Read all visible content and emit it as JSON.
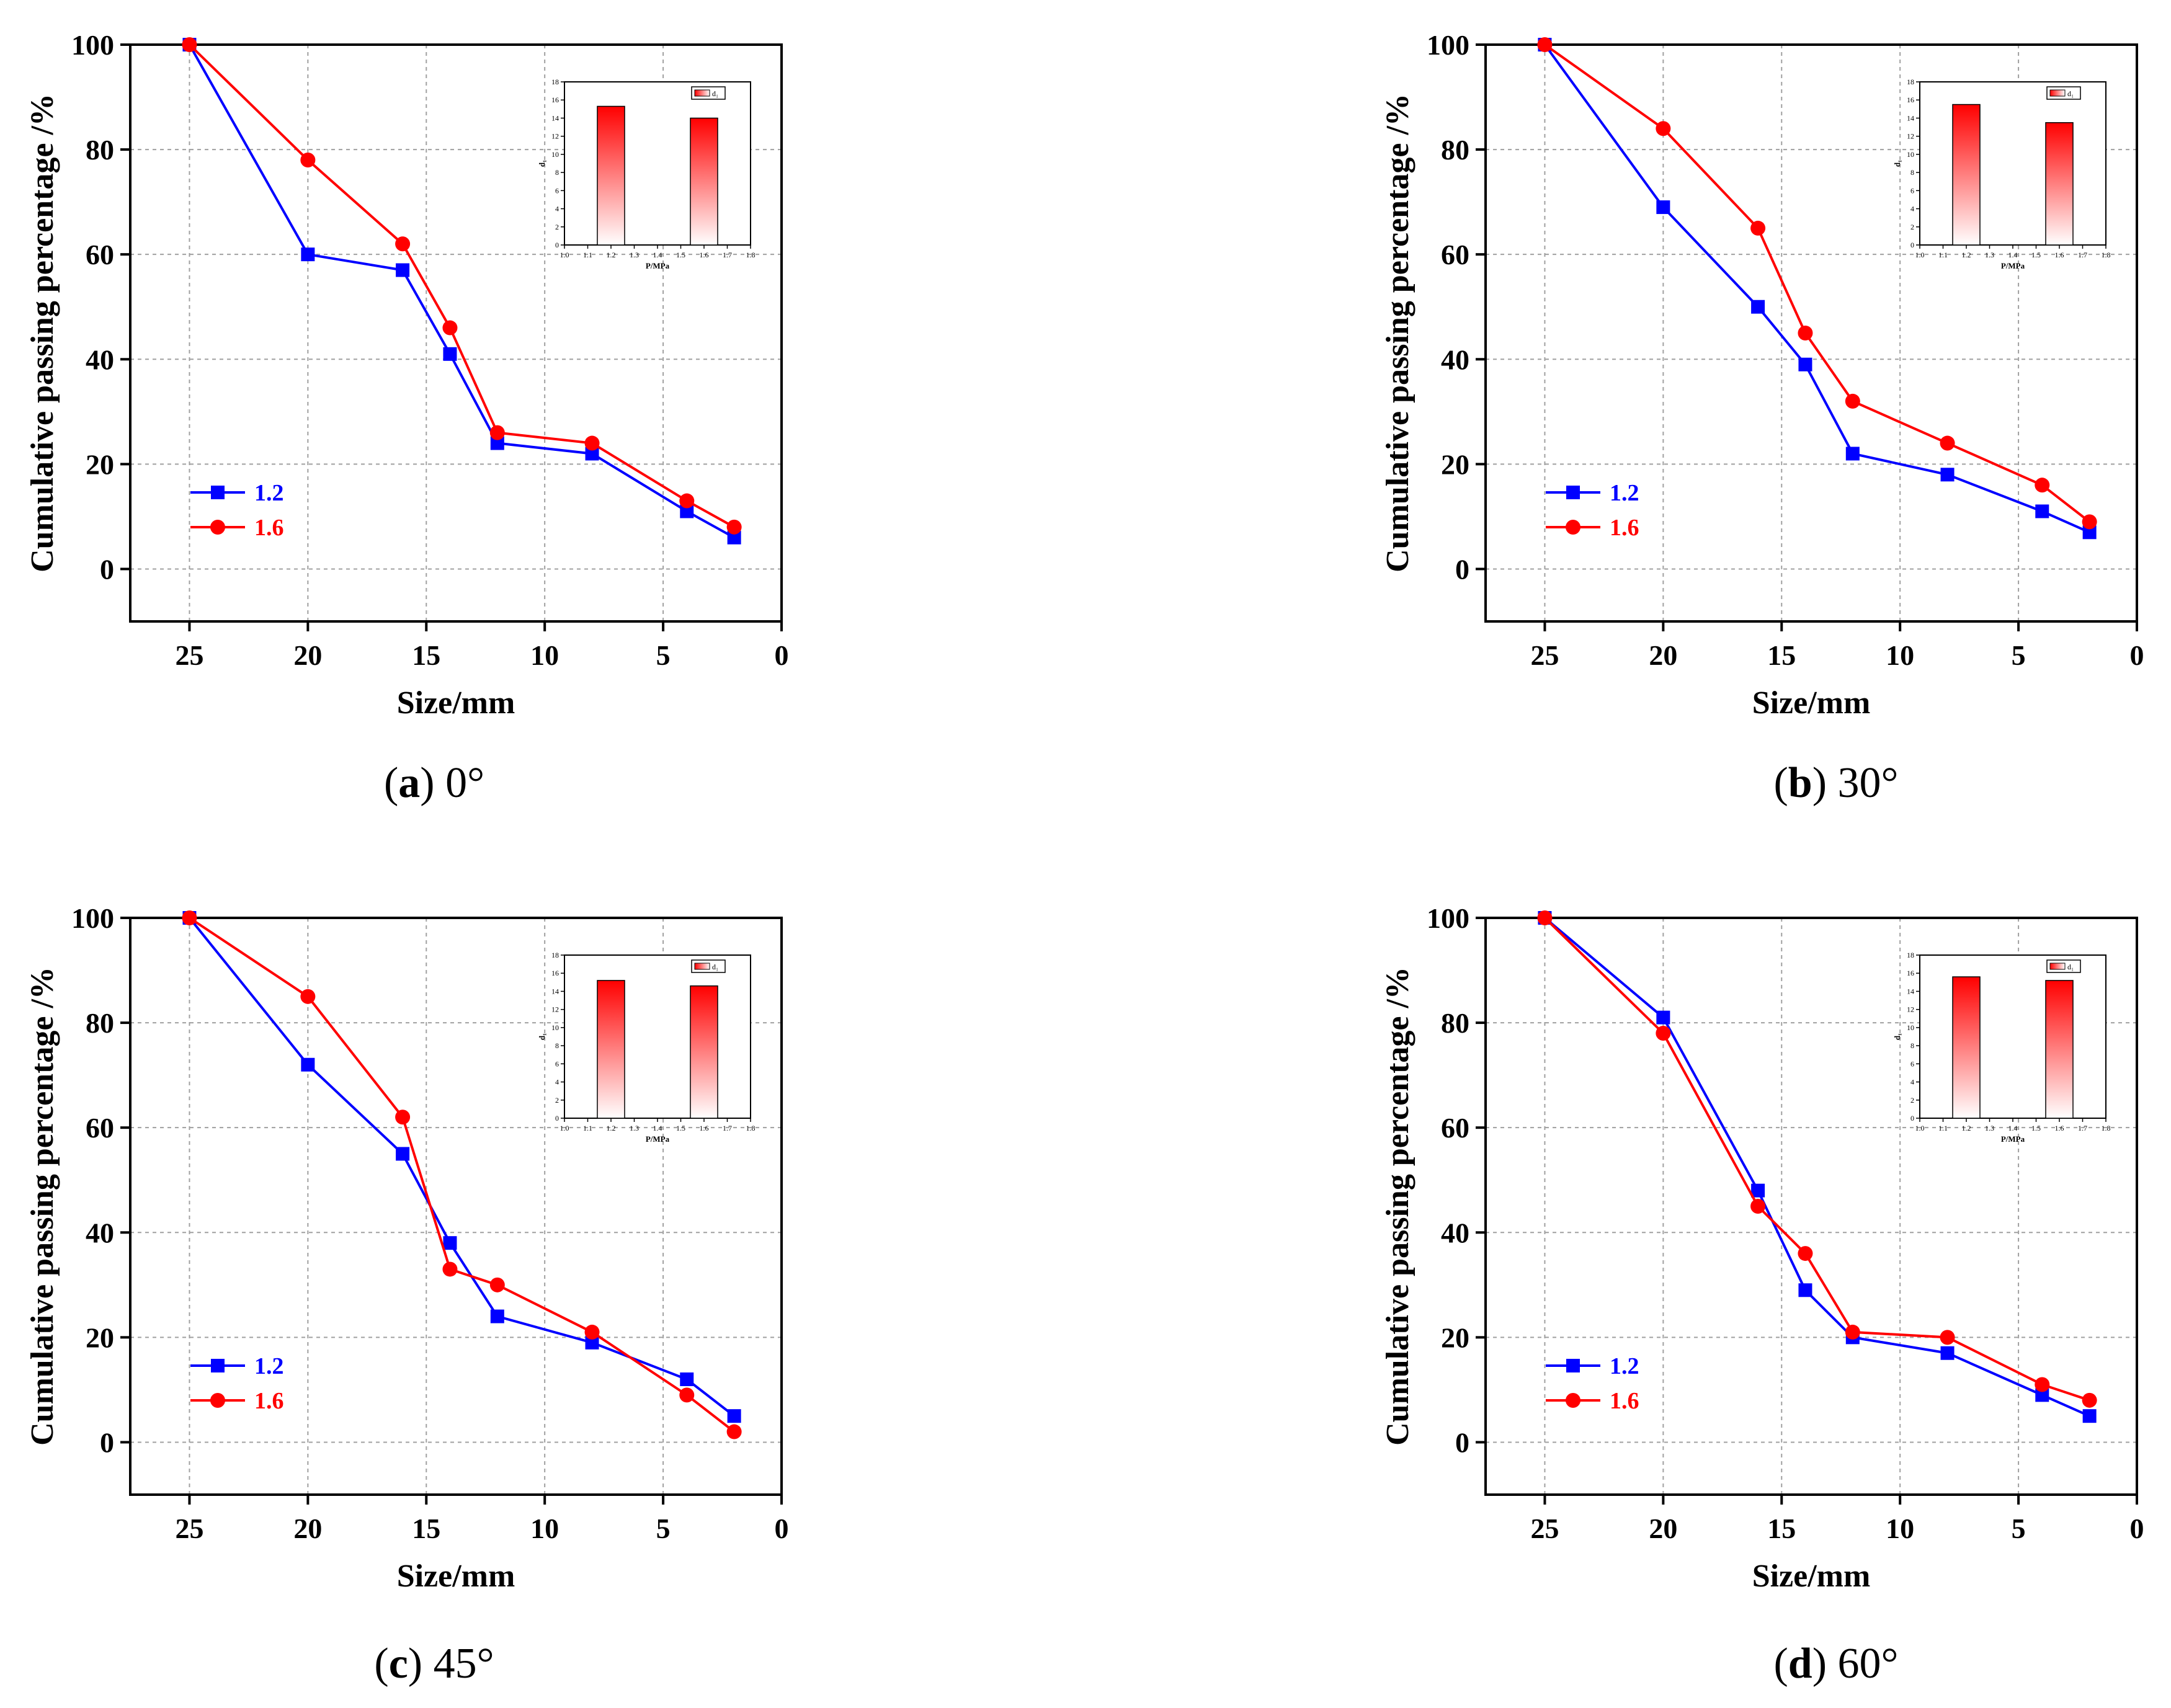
{
  "colors": {
    "series_1_2": "#0000ff",
    "series_1_6": "#ff0000",
    "grid": "#a0a0a0",
    "bar": "#ff0000"
  },
  "chart_data": [
    {
      "type": "line",
      "panel": "a",
      "caption": {
        "letter": "a",
        "angle": "0°"
      },
      "xlabel": "Size/mm",
      "ylabel": "Cumulative passing percentage /%",
      "xlim": [
        27.5,
        0
      ],
      "ylim": [
        -10,
        100
      ],
      "xticks": [
        25,
        20,
        15,
        10,
        5,
        0
      ],
      "yticks": [
        0,
        20,
        40,
        60,
        80,
        100
      ],
      "x": [
        25,
        20,
        16,
        14,
        12,
        8,
        4,
        2
      ],
      "series": [
        {
          "name": "1.2",
          "color": "#0000ff",
          "marker": "square",
          "values": [
            100,
            60,
            57,
            41,
            24,
            22,
            11,
            6
          ]
        },
        {
          "name": "1.6",
          "color": "#ff0000",
          "marker": "circle",
          "values": [
            100,
            78,
            62,
            46,
            26,
            24,
            13,
            8
          ]
        }
      ],
      "inset": {
        "type": "bar",
        "xlabel": "P/MPa",
        "ylabel": "d₁",
        "legend": "d₁",
        "xlim": [
          1.0,
          1.8
        ],
        "ylim": [
          0,
          18
        ],
        "xticks": [
          "1.0",
          "1.1",
          "1.2",
          "1.3",
          "1.4",
          "1.5",
          "1.6",
          "1.7",
          "1.8"
        ],
        "yticks": [
          "0",
          "2",
          "4",
          "6",
          "8",
          "10",
          "12",
          "14",
          "16",
          "18"
        ],
        "categories": [
          1.2,
          1.6
        ],
        "values": [
          15.3,
          14.0
        ]
      }
    },
    {
      "type": "line",
      "panel": "b",
      "caption": {
        "letter": "b",
        "angle": "30°"
      },
      "xlabel": "Size/mm",
      "ylabel": "Cumulative passing percentage /%",
      "xlim": [
        27.5,
        0
      ],
      "ylim": [
        -10,
        100
      ],
      "xticks": [
        25,
        20,
        15,
        10,
        5,
        0
      ],
      "yticks": [
        0,
        20,
        40,
        60,
        80,
        100
      ],
      "x": [
        25,
        20,
        16,
        14,
        12,
        8,
        4,
        2
      ],
      "series": [
        {
          "name": "1.2",
          "color": "#0000ff",
          "marker": "square",
          "values": [
            100,
            69,
            50,
            39,
            22,
            18,
            11,
            7
          ]
        },
        {
          "name": "1.6",
          "color": "#ff0000",
          "marker": "circle",
          "values": [
            100,
            84,
            65,
            45,
            32,
            24,
            16,
            9
          ]
        }
      ],
      "inset": {
        "type": "bar",
        "xlabel": "P/MPa",
        "ylabel": "d₁",
        "legend": "d₁",
        "xlim": [
          1.0,
          1.8
        ],
        "ylim": [
          0,
          18
        ],
        "xticks": [
          "1.0",
          "1.1",
          "1.2",
          "1.3",
          "1.4",
          "1.5",
          "1.6",
          "1.7",
          "1.8"
        ],
        "yticks": [
          "0",
          "2",
          "4",
          "6",
          "8",
          "10",
          "12",
          "14",
          "16",
          "18"
        ],
        "categories": [
          1.2,
          1.6
        ],
        "values": [
          15.5,
          13.5
        ]
      }
    },
    {
      "type": "line",
      "panel": "c",
      "caption": {
        "letter": "c",
        "angle": "45°"
      },
      "xlabel": "Size/mm",
      "ylabel": "Cumulative passing percentage /%",
      "xlim": [
        27.5,
        0
      ],
      "ylim": [
        -10,
        100
      ],
      "xticks": [
        25,
        20,
        15,
        10,
        5,
        0
      ],
      "yticks": [
        0,
        20,
        40,
        60,
        80,
        100
      ],
      "x": [
        25,
        20,
        16,
        14,
        12,
        8,
        4,
        2
      ],
      "series": [
        {
          "name": "1.2",
          "color": "#0000ff",
          "marker": "square",
          "values": [
            100,
            72,
            55,
            38,
            24,
            19,
            12,
            5
          ]
        },
        {
          "name": "1.6",
          "color": "#ff0000",
          "marker": "circle",
          "values": [
            100,
            85,
            62,
            33,
            30,
            21,
            9,
            2
          ]
        }
      ],
      "inset": {
        "type": "bar",
        "xlabel": "P/MPa",
        "ylabel": "d₁",
        "legend": "d₁",
        "xlim": [
          1.0,
          1.8
        ],
        "ylim": [
          0,
          18
        ],
        "xticks": [
          "1.0",
          "1.1",
          "1.2",
          "1.3",
          "1.4",
          "1.5",
          "1.6",
          "1.7",
          "1.8"
        ],
        "yticks": [
          "0",
          "2",
          "4",
          "6",
          "8",
          "10",
          "12",
          "14",
          "16",
          "18"
        ],
        "categories": [
          1.2,
          1.6
        ],
        "values": [
          15.2,
          14.6
        ]
      }
    },
    {
      "type": "line",
      "panel": "d",
      "caption": {
        "letter": "d",
        "angle": "60°"
      },
      "xlabel": "Size/mm",
      "ylabel": "Cumulative passing percentage /%",
      "xlim": [
        27.5,
        0
      ],
      "ylim": [
        -10,
        100
      ],
      "xticks": [
        25,
        20,
        15,
        10,
        5,
        0
      ],
      "yticks": [
        0,
        20,
        40,
        60,
        80,
        100
      ],
      "x": [
        25,
        20,
        16,
        14,
        12,
        8,
        4,
        2
      ],
      "series": [
        {
          "name": "1.2",
          "color": "#0000ff",
          "marker": "square",
          "values": [
            100,
            81,
            48,
            29,
            20,
            17,
            9,
            5
          ]
        },
        {
          "name": "1.6",
          "color": "#ff0000",
          "marker": "circle",
          "values": [
            100,
            78,
            45,
            36,
            21,
            20,
            11,
            8
          ]
        }
      ],
      "inset": {
        "type": "bar",
        "xlabel": "P/MPa",
        "ylabel": "d₁",
        "legend": "d₁",
        "xlim": [
          1.0,
          1.8
        ],
        "ylim": [
          0,
          18
        ],
        "xticks": [
          "1.0",
          "1.1",
          "1.2",
          "1.3",
          "1.4",
          "1.5",
          "1.6",
          "1.7",
          "1.8"
        ],
        "yticks": [
          "0",
          "2",
          "4",
          "6",
          "8",
          "10",
          "12",
          "14",
          "16",
          "18"
        ],
        "categories": [
          1.2,
          1.6
        ],
        "values": [
          15.6,
          15.2
        ]
      }
    }
  ]
}
